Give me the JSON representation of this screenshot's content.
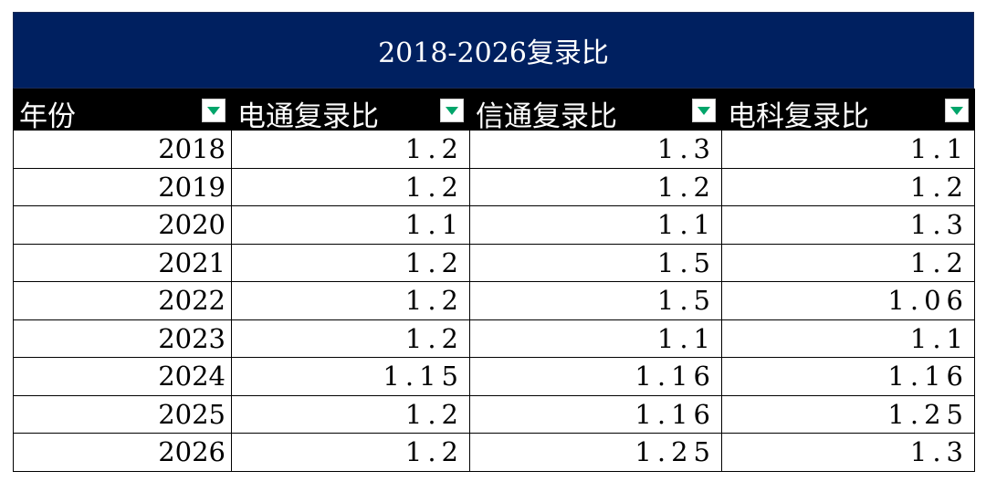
{
  "title": "2018-2026复录比",
  "headers": [
    "年份",
    "电通复录比",
    "信通复录比",
    "电科复录比"
  ],
  "filter_icon": "filter-dropdown-icon",
  "colors": {
    "title_bg": "#002060",
    "header_bg": "#000000",
    "filter_arrow": "#00a56a"
  },
  "rows": [
    {
      "year": "2018",
      "dt": "1.2",
      "xt": "1.3",
      "dk": "1.1"
    },
    {
      "year": "2019",
      "dt": "1.2",
      "xt": "1.2",
      "dk": "1.2"
    },
    {
      "year": "2020",
      "dt": "1.1",
      "xt": "1.1",
      "dk": "1.3"
    },
    {
      "year": "2021",
      "dt": "1.2",
      "xt": "1.5",
      "dk": "1.2"
    },
    {
      "year": "2022",
      "dt": "1.2",
      "xt": "1.5",
      "dk": "1.06"
    },
    {
      "year": "2023",
      "dt": "1.2",
      "xt": "1.1",
      "dk": "1.1"
    },
    {
      "year": "2024",
      "dt": "1.15",
      "xt": "1.16",
      "dk": "1.16"
    },
    {
      "year": "2025",
      "dt": "1.2",
      "xt": "1.16",
      "dk": "1.25"
    },
    {
      "year": "2026",
      "dt": "1.2",
      "xt": "1.25",
      "dk": "1.3"
    }
  ]
}
